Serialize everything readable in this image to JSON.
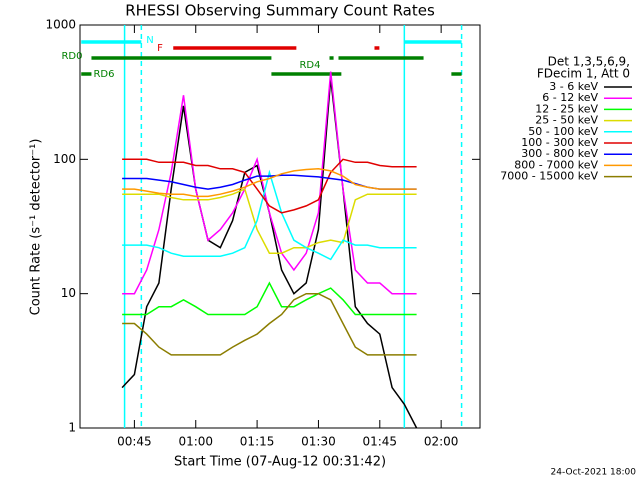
{
  "chart_data": {
    "type": "line",
    "title": "RHESSI Observing Summary Count Rates",
    "xlabel": "Start Time (07-Aug-12 00:31:42)",
    "ylabel": "Count Rate (s⁻¹ detector⁻¹)",
    "footer": "24-Oct-2021 18:00",
    "legend_header": [
      "Det 1,3,5,6,9,",
      "FDecim 1, Att 0"
    ],
    "log_y": true,
    "xlim": [
      31.7,
      129.5
    ],
    "xticks": [
      {
        "value": 45,
        "label": "00:45"
      },
      {
        "value": 60,
        "label": "01:00"
      },
      {
        "value": 75,
        "label": "01:15"
      },
      {
        "value": 90,
        "label": "01:30"
      },
      {
        "value": 105,
        "label": "01:45"
      },
      {
        "value": 120,
        "label": "02:00"
      }
    ],
    "ylim": [
      1,
      1000
    ],
    "yticks": [
      1,
      10,
      100,
      1000
    ],
    "x": [
      42,
      45,
      48,
      51,
      54,
      57,
      60,
      63,
      66,
      69,
      72,
      75,
      78,
      81,
      84,
      87,
      90,
      93,
      96,
      99,
      102,
      105,
      108,
      111,
      114
    ],
    "series": [
      {
        "name": "3 - 6 keV",
        "color": "#000000",
        "values": [
          2,
          2.5,
          8,
          12,
          60,
          250,
          60,
          25,
          22,
          35,
          80,
          90,
          40,
          15,
          10,
          12,
          30,
          400,
          60,
          8,
          6,
          5,
          2,
          1.5,
          1
        ]
      },
      {
        "name": "6 - 12 keV",
        "color": "#ff00ff",
        "values": [
          10,
          10,
          15,
          30,
          80,
          300,
          60,
          25,
          30,
          40,
          60,
          100,
          40,
          20,
          15,
          20,
          40,
          450,
          60,
          15,
          12,
          12,
          10,
          10,
          10
        ]
      },
      {
        "name": "12 - 25 keV",
        "color": "#00ff00",
        "values": [
          7,
          7,
          7,
          8,
          8,
          9,
          8,
          7,
          7,
          7,
          7,
          8,
          12,
          8,
          8,
          9,
          10,
          11,
          9,
          7,
          7,
          7,
          7,
          7,
          7
        ]
      },
      {
        "name": "25 - 50 keV",
        "color": "#dcdc00",
        "values": [
          55,
          55,
          55,
          55,
          52,
          50,
          50,
          50,
          52,
          55,
          60,
          30,
          20,
          20,
          22,
          22,
          24,
          25,
          24,
          50,
          55,
          55,
          55,
          55,
          55
        ]
      },
      {
        "name": "50 - 100 keV",
        "color": "#00ffff",
        "values": [
          23,
          23,
          23,
          22,
          20,
          19,
          19,
          19,
          19,
          20,
          22,
          35,
          80,
          40,
          25,
          22,
          20,
          18,
          25,
          23,
          23,
          22,
          22,
          22,
          22
        ]
      },
      {
        "name": "100 - 300 keV",
        "color": "#e00000",
        "values": [
          100,
          100,
          100,
          95,
          95,
          95,
          90,
          90,
          85,
          85,
          80,
          60,
          45,
          40,
          42,
          45,
          50,
          80,
          100,
          95,
          95,
          90,
          88,
          88,
          88
        ]
      },
      {
        "name": "300 - 800 keV",
        "color": "#0000ff",
        "values": [
          72,
          72,
          72,
          70,
          68,
          65,
          62,
          60,
          62,
          65,
          70,
          75,
          75,
          76,
          76,
          75,
          74,
          72,
          70,
          66,
          62,
          60,
          60,
          60,
          60
        ]
      },
      {
        "name": "800 - 7000 keV",
        "color": "#ff9900",
        "values": [
          60,
          60,
          58,
          56,
          55,
          55,
          53,
          53,
          55,
          58,
          62,
          68,
          72,
          78,
          82,
          84,
          85,
          82,
          75,
          65,
          62,
          60,
          60,
          60,
          60
        ]
      },
      {
        "name": "7000 - 15000 keV",
        "color": "#8b7d00",
        "values": [
          6,
          6,
          5,
          4,
          3.5,
          3.5,
          3.5,
          3.5,
          3.5,
          4,
          4.5,
          5,
          6,
          7,
          9,
          10,
          10,
          9,
          6,
          4,
          3.5,
          3.5,
          3.5,
          3.5,
          3.5
        ]
      }
    ],
    "flags": [
      {
        "label": "N",
        "color": "#00ffff",
        "segments": [
          [
            32.0,
            46.7
          ],
          [
            111.0,
            125.0
          ]
        ]
      },
      {
        "label": "F",
        "color": "#e00000",
        "segments": [
          [
            54.5,
            84.6
          ],
          [
            103.7,
            104.9
          ]
        ]
      },
      {
        "label": "RD0",
        "color": "#008000",
        "segments": [
          [
            34.5,
            78.5
          ],
          [
            92.7,
            93.7
          ],
          [
            94.9,
            115.7
          ]
        ]
      },
      {
        "label": "RD6",
        "color": "#008000",
        "segments": [
          [
            32.0,
            34.5
          ],
          [
            122.5,
            125.0
          ]
        ]
      },
      {
        "label": "RD4",
        "color": "#008000",
        "segments": [
          [
            78.5,
            95.6
          ]
        ]
      }
    ],
    "night_lines": [
      {
        "x": 42.6,
        "style": "solid"
      },
      {
        "x": 46.7,
        "style": "dashed"
      },
      {
        "x": 111.0,
        "style": "solid"
      },
      {
        "x": 125.0,
        "style": "dashed"
      }
    ]
  }
}
